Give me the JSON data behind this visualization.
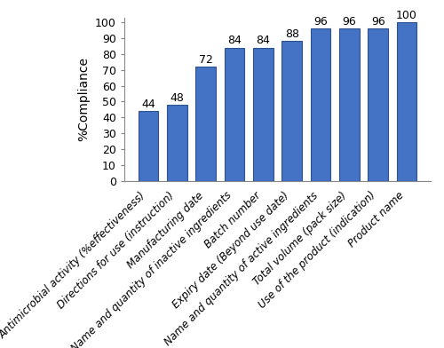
{
  "categories": [
    "Antimicrobial activity (%effectiveness)",
    "Directions for use (instruction)",
    "Manufacturing date",
    "Name and quantity of inactive ingredients",
    "Batch number",
    "Expiry date (Beyond use date)",
    "Name and quantity of active ingredients",
    "Total volume (pack size)",
    "Use of the product (indication)",
    "Product name"
  ],
  "values": [
    44,
    48,
    72,
    84,
    84,
    88,
    96,
    96,
    96,
    100
  ],
  "bar_color": "#4472C4",
  "bar_edgecolor": "#2F528F",
  "ylabel": "%Compliance",
  "ylim": [
    0,
    100
  ],
  "yticks": [
    0,
    10,
    20,
    30,
    40,
    50,
    60,
    70,
    80,
    90,
    100
  ],
  "ylabel_fontsize": 10,
  "tick_fontsize": 9,
  "value_fontsize": 9,
  "xlabel_fontsize": 8.5,
  "background_color": "#ffffff",
  "figure_width": 5.0,
  "figure_height": 3.92,
  "dpi": 100
}
